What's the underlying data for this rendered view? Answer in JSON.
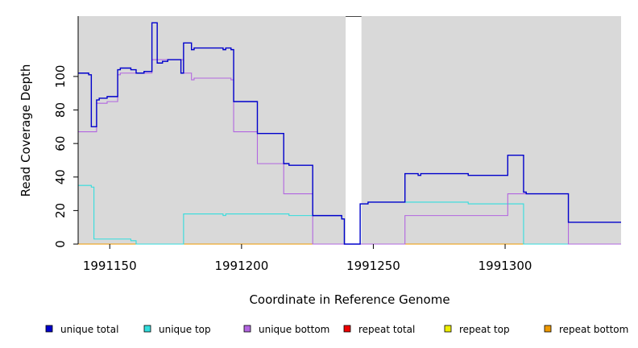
{
  "chart_data": {
    "type": "line",
    "xlabel": "Coordinate in Reference Genome",
    "ylabel": "Read Coverage Depth",
    "xlim": [
      1991138,
      1991344
    ],
    "ylim": [
      0,
      136
    ],
    "xticks": [
      1991150,
      1991200,
      1991250,
      1991300
    ],
    "xtick_labels": [
      "1991150",
      "1991200",
      "1991250",
      "1991300"
    ],
    "yticks": [
      0,
      20,
      40,
      60,
      80,
      100
    ],
    "ytick_labels": [
      "0",
      "20",
      "40",
      "60",
      "80",
      "100"
    ],
    "background": "#d9d9d9",
    "gaps": [
      [
        1991239.5,
        1991245.5
      ]
    ],
    "legend_position": "bottom",
    "series": [
      {
        "name": "unique total",
        "color": "#0000cc",
        "points": [
          [
            1991138,
            102
          ],
          [
            1991142,
            102
          ],
          [
            1991142,
            101
          ],
          [
            1991143,
            101
          ],
          [
            1991143,
            70
          ],
          [
            1991145,
            70
          ],
          [
            1991145,
            86
          ],
          [
            1991146,
            86
          ],
          [
            1991146,
            87
          ],
          [
            1991149,
            87
          ],
          [
            1991149,
            88
          ],
          [
            1991153,
            88
          ],
          [
            1991153,
            104
          ],
          [
            1991154,
            104
          ],
          [
            1991154,
            105
          ],
          [
            1991158,
            105
          ],
          [
            1991158,
            104
          ],
          [
            1991160,
            104
          ],
          [
            1991160,
            102
          ],
          [
            1991163,
            102
          ],
          [
            1991163,
            103
          ],
          [
            1991166,
            103
          ],
          [
            1991166,
            132
          ],
          [
            1991168,
            132
          ],
          [
            1991168,
            108
          ],
          [
            1991170,
            108
          ],
          [
            1991170,
            109
          ],
          [
            1991172,
            109
          ],
          [
            1991172,
            110
          ],
          [
            1991177,
            110
          ],
          [
            1991177,
            102
          ],
          [
            1991178,
            102
          ],
          [
            1991178,
            120
          ],
          [
            1991181,
            120
          ],
          [
            1991181,
            116
          ],
          [
            1991182,
            116
          ],
          [
            1991182,
            117
          ],
          [
            1991193,
            117
          ],
          [
            1991193,
            116
          ],
          [
            1991194,
            116
          ],
          [
            1991194,
            117
          ],
          [
            1991196,
            117
          ],
          [
            1991196,
            116
          ],
          [
            1991197,
            116
          ],
          [
            1991197,
            85
          ],
          [
            1991206,
            85
          ],
          [
            1991206,
            66
          ],
          [
            1991216,
            66
          ],
          [
            1991216,
            48
          ],
          [
            1991218,
            48
          ],
          [
            1991218,
            47
          ],
          [
            1991227,
            47
          ],
          [
            1991227,
            17
          ],
          [
            1991238,
            17
          ],
          [
            1991238,
            15
          ],
          [
            1991239,
            15
          ],
          [
            1991239,
            0
          ],
          [
            1991245,
            0
          ],
          [
            1991245,
            24
          ],
          [
            1991248,
            24
          ],
          [
            1991248,
            25
          ],
          [
            1991262,
            25
          ],
          [
            1991262,
            42
          ],
          [
            1991267,
            42
          ],
          [
            1991267,
            41
          ],
          [
            1991268,
            41
          ],
          [
            1991268,
            42
          ],
          [
            1991286,
            42
          ],
          [
            1991286,
            41
          ],
          [
            1991301,
            41
          ],
          [
            1991301,
            53
          ],
          [
            1991307,
            53
          ],
          [
            1991307,
            31
          ],
          [
            1991308,
            31
          ],
          [
            1991308,
            30
          ],
          [
            1991324,
            30
          ],
          [
            1991324,
            13
          ],
          [
            1991344,
            13
          ]
        ]
      },
      {
        "name": "unique top",
        "color": "#33dddd",
        "points": [
          [
            1991138,
            35
          ],
          [
            1991143,
            35
          ],
          [
            1991143,
            34
          ],
          [
            1991144,
            34
          ],
          [
            1991144,
            3
          ],
          [
            1991158,
            3
          ],
          [
            1991158,
            2
          ],
          [
            1991160,
            2
          ],
          [
            1991160,
            0
          ],
          [
            1991178,
            0
          ],
          [
            1991178,
            18
          ],
          [
            1991193,
            18
          ],
          [
            1991193,
            17
          ],
          [
            1991194,
            17
          ],
          [
            1991194,
            18
          ],
          [
            1991218,
            18
          ],
          [
            1991218,
            17
          ],
          [
            1991227,
            17
          ],
          [
            1991227,
            17
          ],
          [
            1991238,
            17
          ],
          [
            1991238,
            15
          ],
          [
            1991239,
            15
          ],
          [
            1991239,
            0
          ],
          [
            1991245,
            0
          ],
          [
            1991245,
            24
          ],
          [
            1991248,
            24
          ],
          [
            1991248,
            25
          ],
          [
            1991286,
            25
          ],
          [
            1991286,
            24
          ],
          [
            1991307,
            24
          ],
          [
            1991307,
            23
          ],
          [
            1991307,
            0
          ],
          [
            1991344,
            0
          ]
        ]
      },
      {
        "name": "unique bottom",
        "color": "#b266e0",
        "points": [
          [
            1991138,
            67
          ],
          [
            1991145,
            67
          ],
          [
            1991145,
            84
          ],
          [
            1991149,
            84
          ],
          [
            1991149,
            85
          ],
          [
            1991153,
            85
          ],
          [
            1991153,
            101
          ],
          [
            1991154,
            101
          ],
          [
            1991154,
            102
          ],
          [
            1991166,
            102
          ],
          [
            1991166,
            110
          ],
          [
            1991178,
            110
          ],
          [
            1991178,
            102
          ],
          [
            1991181,
            102
          ],
          [
            1991181,
            98
          ],
          [
            1991182,
            98
          ],
          [
            1991182,
            99
          ],
          [
            1991196,
            99
          ],
          [
            1991196,
            98
          ],
          [
            1991197,
            98
          ],
          [
            1991197,
            67
          ],
          [
            1991206,
            67
          ],
          [
            1991206,
            48
          ],
          [
            1991216,
            48
          ],
          [
            1991216,
            30
          ],
          [
            1991227,
            30
          ],
          [
            1991227,
            0
          ],
          [
            1991262,
            0
          ],
          [
            1991262,
            17
          ],
          [
            1991301,
            17
          ],
          [
            1991301,
            30
          ],
          [
            1991324,
            30
          ],
          [
            1991324,
            0
          ],
          [
            1991344,
            0
          ]
        ]
      },
      {
        "name": "repeat total",
        "color": "#ee0000",
        "points": [
          [
            1991138,
            0
          ],
          [
            1991344,
            0
          ]
        ]
      },
      {
        "name": "repeat top",
        "color": "#eeee00",
        "points": [
          [
            1991138,
            0
          ],
          [
            1991344,
            0
          ]
        ]
      },
      {
        "name": "repeat bottom",
        "color": "#ee9900",
        "points": [
          [
            1991138,
            0
          ],
          [
            1991344,
            0
          ]
        ]
      }
    ]
  }
}
